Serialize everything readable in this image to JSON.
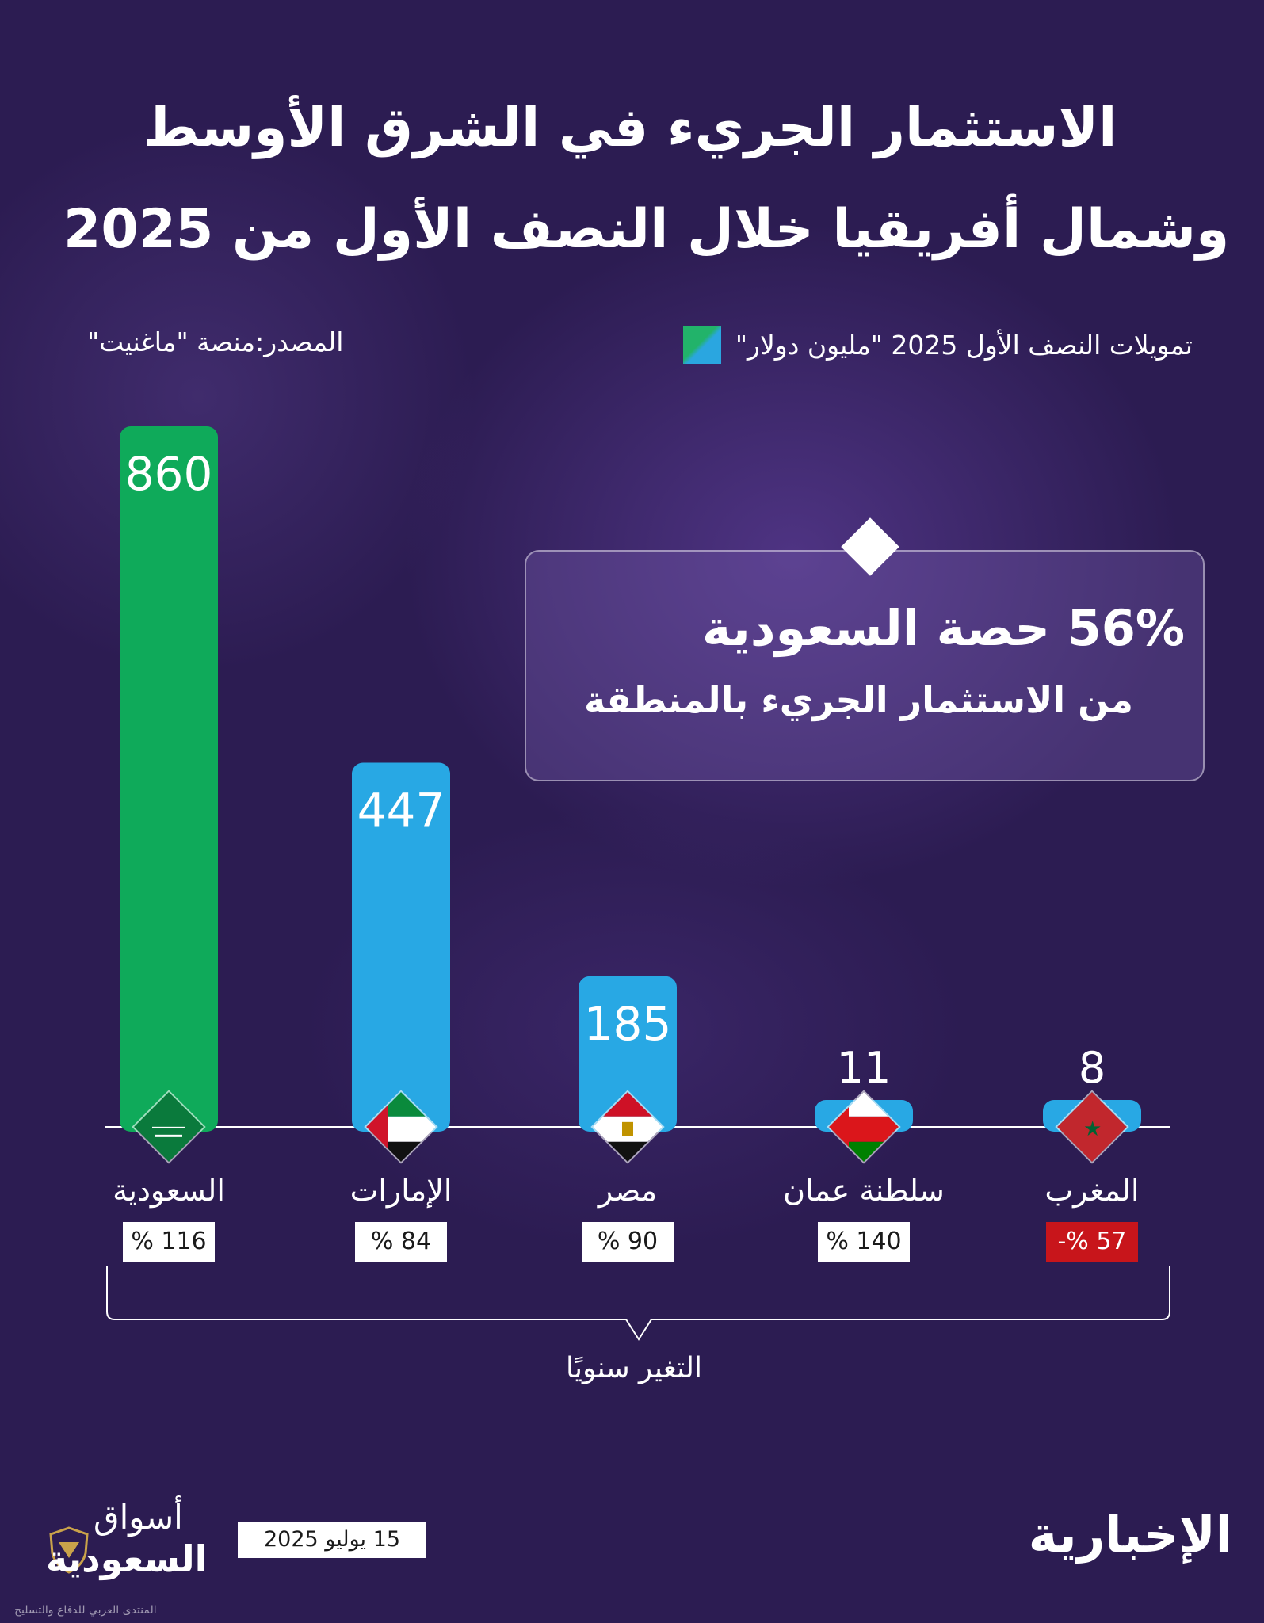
{
  "title": {
    "line1": "الاستثمار الجريء في الشرق الأوسط",
    "line2": "وشمال أفريقيا خلال النصف الأول من 2025"
  },
  "legend": {
    "label": "تمويلات النصف الأول 2025 \"مليون دولار\""
  },
  "source": "المصدر:منصة \"ماغنيت\"",
  "callout": {
    "line1": "56% حصة السعودية",
    "line2": "من الاستثمار الجريء بالمنطقة"
  },
  "chart_data": {
    "type": "bar",
    "categories": [
      "السعودية",
      "الإمارات",
      "مصر",
      "سلطنة عمان",
      "المغرب"
    ],
    "values": [
      860,
      447,
      185,
      11,
      8
    ],
    "value_labels": [
      "860",
      "447",
      "185",
      "11",
      "8"
    ],
    "yoy_change": [
      "% 116",
      "% 84",
      "% 90",
      "% 140",
      "-% 57"
    ],
    "yoy_negative": [
      false,
      false,
      false,
      false,
      true
    ],
    "colors": [
      "#0faa5a",
      "#28a8e4",
      "#28a8e4",
      "#28a8e4",
      "#28a8e4"
    ],
    "bracket_label": "التغير سنويًا",
    "flags": [
      "saudi-flag-icon",
      "uae-flag-icon",
      "egypt-flag-icon",
      "oman-flag-icon",
      "morocco-flag-icon"
    ]
  },
  "footer": {
    "date": "15 يوليو 2025",
    "brand_right": "الإخبارية",
    "brand_left_line1": "أسواق",
    "brand_left_line2": "السعودية",
    "watermark": "المنتدى العربي للدفاع والتسليح"
  }
}
